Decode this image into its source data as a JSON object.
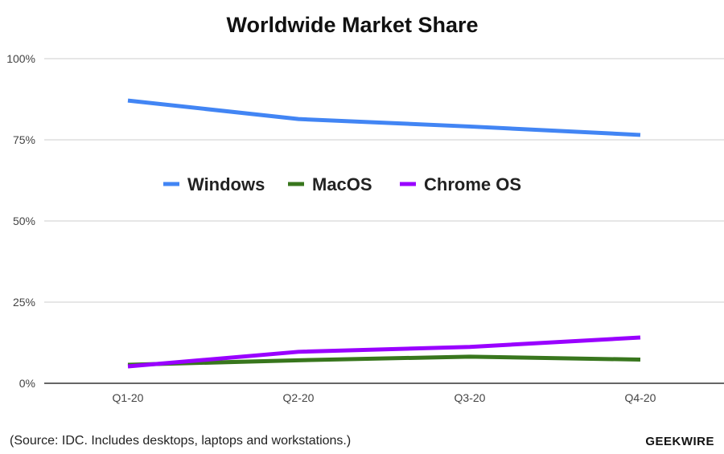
{
  "chart_data": {
    "type": "line",
    "title": "Worldwide Market Share",
    "categories": [
      "Q1-20",
      "Q2-20",
      "Q3-20",
      "Q4-20"
    ],
    "series": [
      {
        "name": "Windows",
        "color": "#4285f4",
        "values": [
          87.1,
          81.4,
          79.1,
          76.5
        ]
      },
      {
        "name": "MacOS",
        "color": "#38761d",
        "values": [
          5.7,
          7.1,
          8.2,
          7.3
        ]
      },
      {
        "name": "Chrome OS",
        "color": "#9900ff",
        "values": [
          5.2,
          9.7,
          11.2,
          14.1
        ]
      }
    ],
    "ylim": [
      0,
      100
    ],
    "yticks": [
      "0%",
      "25%",
      "50%",
      "75%",
      "100%"
    ],
    "grid": true,
    "legend": "center"
  },
  "footer": {
    "source": "(Source: IDC. Includes desktops, laptops and workstations.)",
    "brand": "GEEKWIRE"
  }
}
